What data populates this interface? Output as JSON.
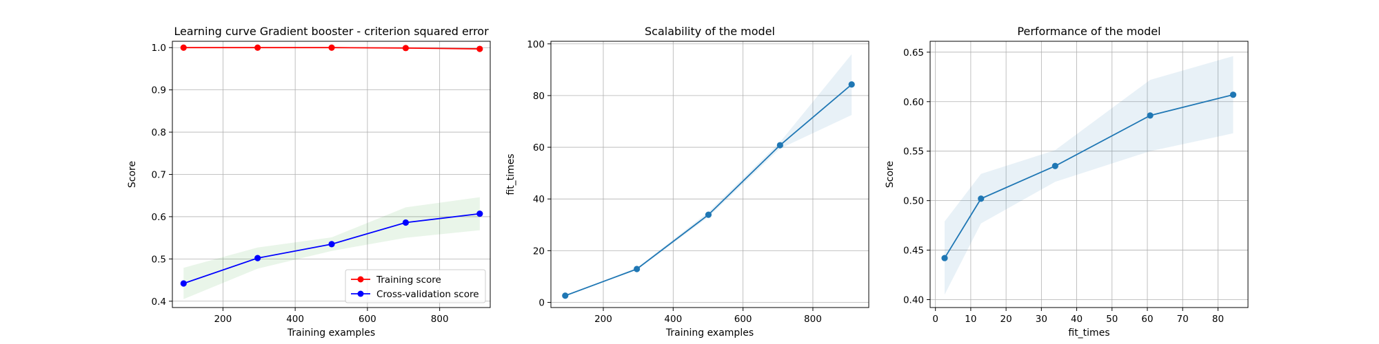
{
  "chart_data": [
    {
      "type": "line",
      "title": "Learning curve Gradient booster - criterion squared error",
      "xlabel": "Training examples",
      "ylabel": "Score",
      "xlim": [
        60,
        940
      ],
      "ylim": [
        0.385,
        1.015
      ],
      "xticks": [
        200,
        400,
        600,
        800
      ],
      "yticks": [
        0.4,
        0.5,
        0.6,
        0.7,
        0.8,
        0.9,
        1.0
      ],
      "ytick_decimals": 1,
      "grid": true,
      "legend_position": "lower-right",
      "x": [
        91,
        296,
        501,
        706,
        911
      ],
      "series": [
        {
          "name": "Training score",
          "color": "#ff0000",
          "values": [
            1.0,
            1.0,
            1.0,
            0.999,
            0.997
          ],
          "band_low": [
            1.0,
            1.0,
            1.0,
            0.999,
            0.997
          ],
          "band_high": [
            1.0,
            1.0,
            1.0,
            0.999,
            0.997
          ],
          "band_color": "#ff0000"
        },
        {
          "name": "Cross-validation score",
          "color": "#0000ff",
          "values": [
            0.442,
            0.502,
            0.535,
            0.586,
            0.607
          ],
          "band_low": [
            0.405,
            0.477,
            0.519,
            0.55,
            0.568
          ],
          "band_high": [
            0.479,
            0.527,
            0.551,
            0.622,
            0.646
          ],
          "band_color": "#2ca02c"
        }
      ]
    },
    {
      "type": "line",
      "title": "Scalability of the model",
      "xlabel": "Training examples",
      "ylabel": "fit_times",
      "xlim": [
        50,
        960
      ],
      "ylim": [
        -2,
        101
      ],
      "xticks": [
        200,
        400,
        600,
        800
      ],
      "yticks": [
        0,
        20,
        40,
        60,
        80,
        100
      ],
      "ytick_decimals": 0,
      "grid": true,
      "x": [
        91,
        296,
        501,
        706,
        911
      ],
      "series": [
        {
          "color": "#1f77b4",
          "values": [
            2.6,
            12.9,
            33.9,
            60.8,
            84.3
          ],
          "band_low": [
            2.5,
            12.5,
            33.0,
            59.5,
            72.5
          ],
          "band_high": [
            2.7,
            13.3,
            35.0,
            62.0,
            96.0
          ],
          "band_color": "#1f77b4"
        }
      ]
    },
    {
      "type": "line",
      "title": "Performance of the model",
      "xlabel": "fit_times",
      "ylabel": "Score",
      "xlim": [
        -1.5,
        88.5
      ],
      "ylim": [
        0.392,
        0.661
      ],
      "xticks": [
        0,
        10,
        20,
        30,
        40,
        50,
        60,
        70,
        80
      ],
      "yticks": [
        0.4,
        0.45,
        0.5,
        0.55,
        0.6,
        0.65
      ],
      "ytick_decimals": 2,
      "grid": true,
      "x": [
        2.6,
        12.9,
        33.9,
        60.8,
        84.3
      ],
      "series": [
        {
          "color": "#1f77b4",
          "values": [
            0.442,
            0.502,
            0.535,
            0.586,
            0.607
          ],
          "band_low": [
            0.405,
            0.477,
            0.519,
            0.55,
            0.568
          ],
          "band_high": [
            0.479,
            0.527,
            0.551,
            0.622,
            0.646
          ],
          "band_color": "#1f77b4"
        }
      ]
    }
  ]
}
